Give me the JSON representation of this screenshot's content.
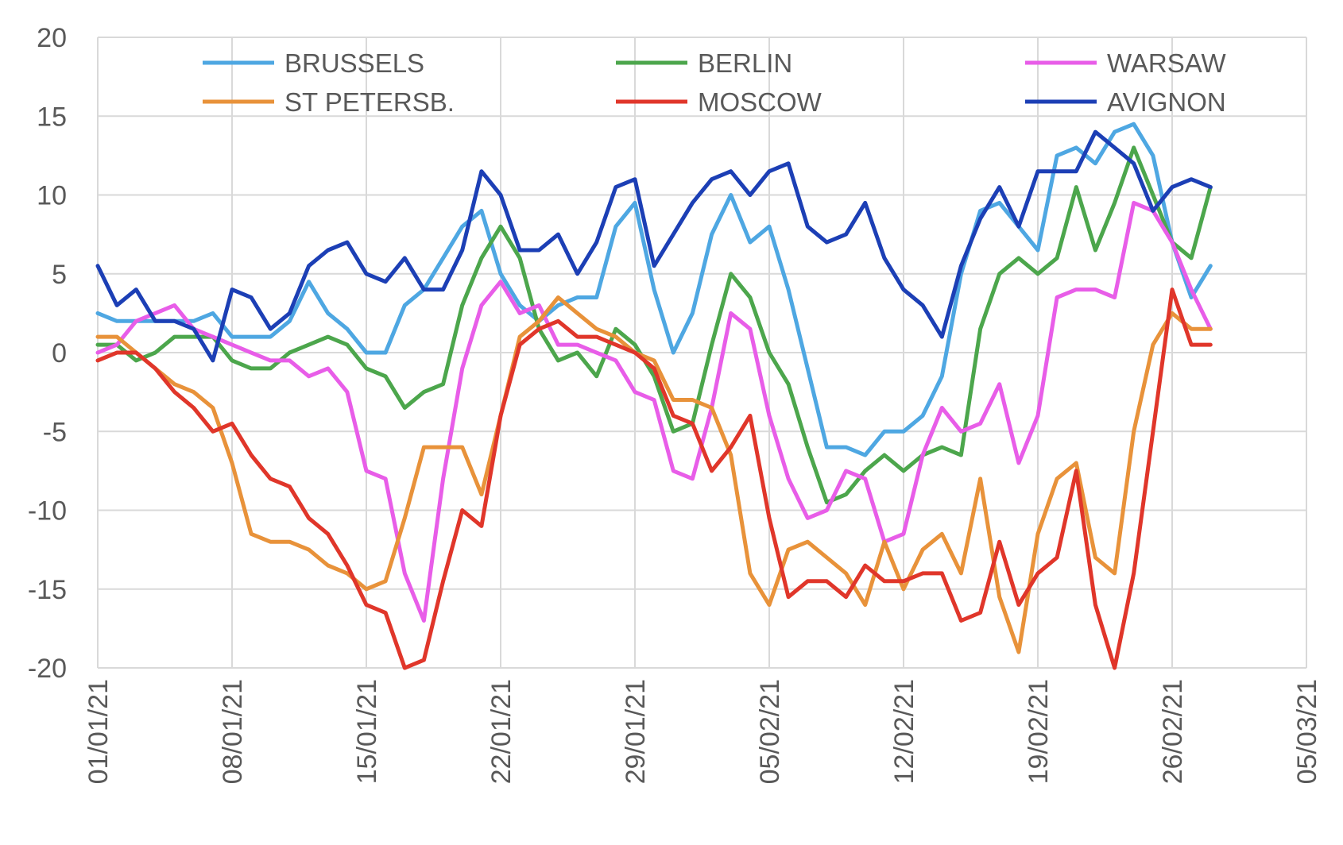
{
  "chart_data": {
    "type": "line",
    "title": "",
    "xlabel": "",
    "ylabel": "",
    "ylim": [
      -20,
      20
    ],
    "yticks": [
      20,
      15,
      10,
      5,
      0,
      -5,
      -10,
      -15,
      -20
    ],
    "ytick_labels": [
      "20",
      "15",
      "10",
      "5",
      "0",
      "-5",
      "-10",
      "-15",
      "-20"
    ],
    "xlim": [
      "2021-01-01",
      "2021-03-05"
    ],
    "xtick_dates": [
      "2021-01-01",
      "2021-01-08",
      "2021-01-15",
      "2021-01-22",
      "2021-01-29",
      "2021-02-05",
      "2021-02-12",
      "2021-02-19",
      "2021-02-26",
      "2021-03-05"
    ],
    "xtick_labels": [
      "01/01/21",
      "08/01/21",
      "15/01/21",
      "22/01/21",
      "29/01/21",
      "05/02/21",
      "12/02/21",
      "19/02/21",
      "26/02/21",
      "05/03/21"
    ],
    "grid": true,
    "legend_position": "top",
    "x_start": "2021-01-01",
    "x_end": "2021-02-28",
    "series": [
      {
        "name": "BRUSSELS",
        "color": "#4ea7e2",
        "values": [
          2.5,
          2,
          2,
          2,
          2,
          2,
          2.5,
          1,
          1,
          1,
          2,
          4.5,
          2.5,
          1.5,
          0,
          0,
          3,
          4,
          6,
          8,
          9,
          5,
          3,
          2,
          3,
          3.5,
          3.5,
          8,
          9.5,
          4,
          0,
          2.5,
          7.5,
          10,
          7,
          8,
          4,
          -1,
          -6,
          -6,
          -6.5,
          -5,
          -5,
          -4,
          -1.5,
          5,
          9,
          9.5,
          8,
          6.5,
          12.5,
          13,
          12,
          14,
          14.5,
          12.5,
          7,
          3.5,
          5.5
        ]
      },
      {
        "name": "BERLIN",
        "color": "#4ca64c",
        "values": [
          0.5,
          0.5,
          -0.5,
          0,
          1,
          1,
          1,
          -0.5,
          -1,
          -1,
          0,
          0.5,
          1,
          0.5,
          -1,
          -1.5,
          -3.5,
          -2.5,
          -2,
          3,
          6,
          8,
          6,
          1.5,
          -0.5,
          0,
          -1.5,
          1.5,
          0.5,
          -1.5,
          -5,
          -4.5,
          0.5,
          5,
          3.5,
          0,
          -2,
          -6,
          -9.5,
          -9,
          -7.5,
          -6.5,
          -7.5,
          -6.5,
          -6,
          -6.5,
          1.5,
          5,
          6,
          5,
          6,
          10.5,
          6.5,
          9.5,
          13,
          10,
          7,
          6,
          10.5
        ]
      },
      {
        "name": "WARSAW",
        "color": "#e85de8",
        "values": [
          0,
          0.5,
          2,
          2.5,
          3,
          1.5,
          1,
          0.5,
          0,
          -0.5,
          -0.5,
          -1.5,
          -1,
          -2.5,
          -7.5,
          -8,
          -14,
          -17,
          -8,
          -1,
          3,
          4.5,
          2.5,
          3,
          0.5,
          0.5,
          0,
          -0.5,
          -2.5,
          -3,
          -7.5,
          -8,
          -3.5,
          2.5,
          1.5,
          -4,
          -8,
          -10.5,
          -10,
          -7.5,
          -8,
          -12,
          -11.5,
          -6.5,
          -3.5,
          -5,
          -4.5,
          -2,
          -7,
          -4,
          3.5,
          4,
          4,
          3.5,
          9.5,
          9,
          7,
          4,
          1.5
        ]
      },
      {
        "name": "ST PETERSB.",
        "color": "#e8923a",
        "values": [
          1,
          1,
          0,
          -1,
          -2,
          -2.5,
          -3.5,
          -7,
          -11.5,
          -12,
          -12,
          -12.5,
          -13.5,
          -14,
          -15,
          -14.5,
          -10.5,
          -6,
          -6,
          -6,
          -9,
          -4,
          1,
          2,
          3.5,
          2.5,
          1.5,
          1,
          0,
          -0.5,
          -3,
          -3,
          -3.5,
          -6.5,
          -14,
          -16,
          -12.5,
          -12,
          -13,
          -14,
          -16,
          -12,
          -15,
          -12.5,
          -11.5,
          -14,
          -8,
          -15.5,
          -19,
          -11.5,
          -8,
          -7,
          -13,
          -14,
          -5,
          0.5,
          2.5,
          1.5,
          1.5
        ]
      },
      {
        "name": "MOSCOW",
        "color": "#e0362a",
        "values": [
          -0.5,
          0,
          0,
          -1,
          -2.5,
          -3.5,
          -5,
          -4.5,
          -6.5,
          -8,
          -8.5,
          -10.5,
          -11.5,
          -13.5,
          -16,
          -16.5,
          -20,
          -19.5,
          -14.5,
          -10,
          -11,
          -4,
          0.5,
          1.5,
          2,
          1,
          1,
          0.5,
          0,
          -1,
          -4,
          -4.5,
          -7.5,
          -6,
          -4,
          -10.5,
          -15.5,
          -14.5,
          -14.5,
          -15.5,
          -13.5,
          -14.5,
          -14.5,
          -14,
          -14,
          -17,
          -16.5,
          -12,
          -16,
          -14,
          -13,
          -7.5,
          -16,
          -20,
          -14,
          -5,
          4,
          0.5,
          0.5
        ]
      },
      {
        "name": "AVIGNON",
        "color": "#1c3fb5",
        "values": [
          5.5,
          3,
          4,
          2,
          2,
          1.5,
          -0.5,
          4,
          3.5,
          1.5,
          2.5,
          5.5,
          6.5,
          7,
          5,
          4.5,
          6,
          4,
          4,
          6.5,
          11.5,
          10,
          6.5,
          6.5,
          7.5,
          5,
          7,
          10.5,
          11,
          5.5,
          7.5,
          9.5,
          11,
          11.5,
          10,
          11.5,
          12,
          8,
          7,
          7.5,
          9.5,
          6,
          4,
          3,
          1,
          5.5,
          8.5,
          10.5,
          8,
          11.5,
          11.5,
          11.5,
          14,
          13,
          12,
          9,
          10.5,
          11,
          10.5
        ]
      }
    ]
  }
}
